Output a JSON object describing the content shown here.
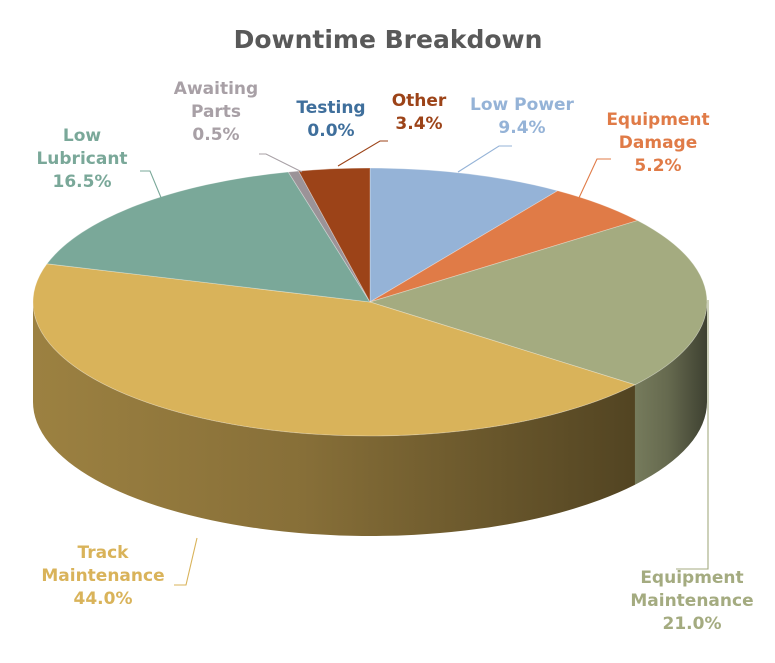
{
  "chart_data": {
    "type": "pie",
    "variant": "3d",
    "title": "Downtime Breakdown",
    "unit": "%",
    "legend": "none",
    "start_angle_deg": 0,
    "direction": "clockwise",
    "slices": [
      {
        "name": "Low Power",
        "value": 9.4,
        "value_label": "9.4%",
        "label_lines": [
          "Low Power"
        ],
        "color": "#95b3d7",
        "label_color": "#95b3d7"
      },
      {
        "name": "Equipment Damage",
        "value": 5.2,
        "value_label": "5.2%",
        "label_lines": [
          "Equipment",
          "Damage"
        ],
        "color": "#e07b47",
        "label_color": "#e07b47"
      },
      {
        "name": "Equipment Maintenance",
        "value": 21.0,
        "value_label": "21.0%",
        "label_lines": [
          "Equipment",
          "Maintenance"
        ],
        "color": "#a4ab80",
        "label_color": "#a4ab80"
      },
      {
        "name": "Track Maintenance",
        "value": 44.0,
        "value_label": "44.0%",
        "label_lines": [
          "Track",
          "Maintenance"
        ],
        "color": "#d9b35a",
        "label_color": "#d9b35a"
      },
      {
        "name": "Low Lubricant",
        "value": 16.5,
        "value_label": "16.5%",
        "label_lines": [
          "Low",
          "Lubricant"
        ],
        "color": "#7aa899",
        "label_color": "#7aa899"
      },
      {
        "name": "Awaiting Parts",
        "value": 0.5,
        "value_label": "0.5%",
        "label_lines": [
          "Awaiting",
          "Parts"
        ],
        "color": "#9b9398",
        "label_color": "#a8a0a6"
      },
      {
        "name": "Testing",
        "value": 0.0,
        "value_label": "0.0%",
        "label_lines": [
          "Testing"
        ],
        "color": "#3f6f9c",
        "label_color": "#3f6f9c"
      },
      {
        "name": "Other",
        "value": 3.4,
        "value_label": "3.4%",
        "label_lines": [
          "Other"
        ],
        "color": "#9c4318",
        "label_color": "#9c4318"
      }
    ]
  }
}
